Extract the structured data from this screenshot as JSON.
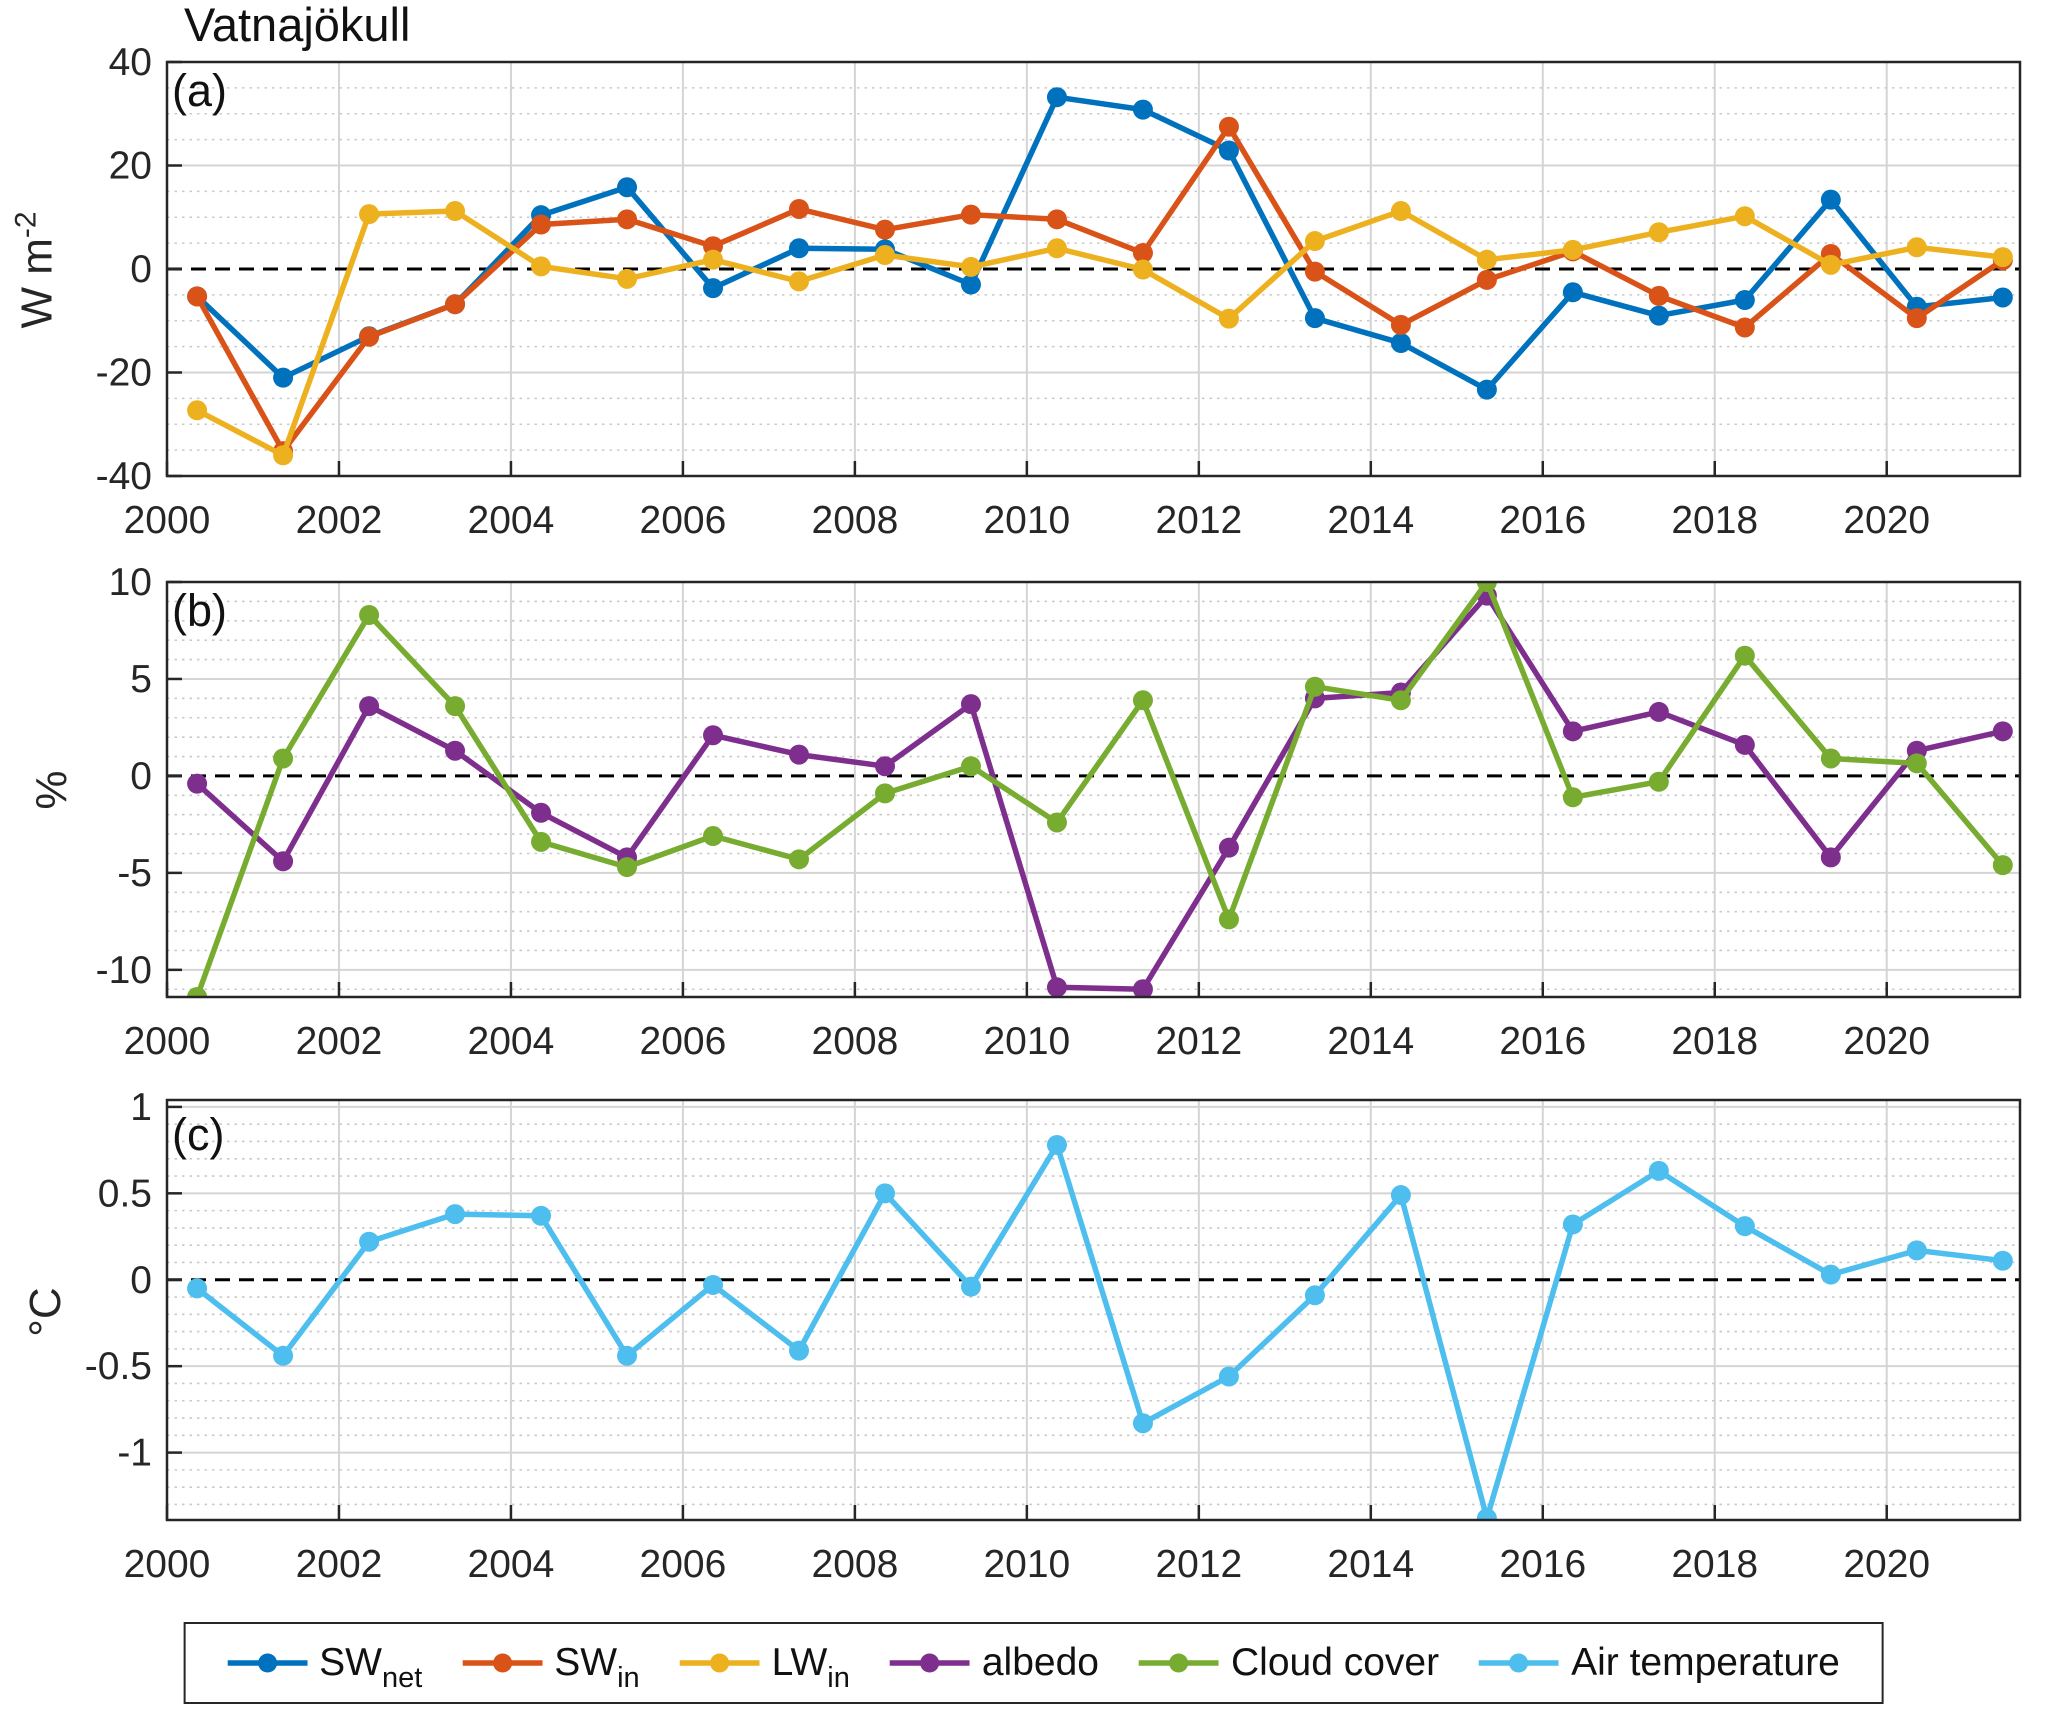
{
  "title": "Vatnajökull",
  "x_axis": {
    "years": [
      2000,
      2001,
      2002,
      2003,
      2004,
      2005,
      2006,
      2007,
      2008,
      2009,
      2010,
      2011,
      2012,
      2013,
      2014,
      2015,
      2016,
      2017,
      2018,
      2019,
      2020,
      2021
    ],
    "point_offset": 0.35,
    "xticks": [
      2000,
      2002,
      2004,
      2006,
      2008,
      2010,
      2012,
      2014,
      2016,
      2018,
      2020
    ],
    "xlim": [
      2000,
      2021.55
    ]
  },
  "chart_data": [
    {
      "type": "line",
      "panel_label": "(a)",
      "ylabel": "W m",
      "ylabel_sup": "-2",
      "ylim": [
        -40,
        40
      ],
      "yticks": [
        40,
        20,
        0,
        -20,
        -40
      ],
      "minor_step": 5,
      "zero_dashed_line": true,
      "grid": "on",
      "series": [
        {
          "name": "SW_net",
          "color": "#0072BD",
          "values": [
            -5.3,
            -21.0,
            -13.0,
            -6.8,
            10.4,
            15.8,
            -3.7,
            4.0,
            3.8,
            -3.0,
            33.2,
            30.8,
            22.9,
            -9.5,
            -14.3,
            -23.3,
            -4.5,
            -9.0,
            -6.0,
            13.4,
            -7.3,
            -5.5
          ]
        },
        {
          "name": "SW_in",
          "color": "#D95319",
          "values": [
            -5.3,
            -35.2,
            -13.1,
            -6.8,
            8.6,
            9.6,
            4.4,
            11.6,
            7.6,
            10.5,
            9.6,
            3.1,
            27.5,
            -0.5,
            -10.8,
            -2.1,
            3.4,
            -5.2,
            -11.3,
            2.9,
            -9.5,
            1.7
          ]
        },
        {
          "name": "LW_in",
          "color": "#EDB120",
          "values": [
            -27.3,
            -36.0,
            10.6,
            11.2,
            0.5,
            -1.9,
            1.8,
            -2.4,
            2.7,
            0.4,
            4.0,
            -0.1,
            -9.6,
            5.4,
            11.2,
            1.8,
            3.7,
            7.1,
            10.2,
            0.8,
            4.2,
            2.3
          ]
        }
      ]
    },
    {
      "type": "line",
      "panel_label": "(b)",
      "ylabel": "%",
      "ylabel_sup": "",
      "ylim": [
        -11.4,
        10
      ],
      "yticks": [
        10,
        5,
        0,
        -5,
        -10
      ],
      "minor_step": 1,
      "zero_dashed_line": true,
      "grid": "on",
      "series": [
        {
          "name": "albedo",
          "color": "#7E2F8E",
          "values": [
            -0.4,
            -4.4,
            3.6,
            1.3,
            -1.9,
            -4.2,
            2.1,
            1.1,
            0.5,
            3.7,
            -10.9,
            -11.0,
            -3.7,
            4.0,
            4.3,
            9.3,
            2.3,
            3.3,
            1.6,
            -4.2,
            1.3,
            2.3
          ]
        },
        {
          "name": "Cloud cover",
          "color": "#77AC30",
          "values": [
            -11.4,
            0.9,
            8.3,
            3.6,
            -3.4,
            -4.7,
            -3.1,
            -4.3,
            -0.9,
            0.5,
            -2.4,
            3.9,
            -7.4,
            4.6,
            3.9,
            10.0,
            -1.1,
            -0.3,
            6.2,
            0.9,
            0.65,
            -4.6
          ]
        }
      ]
    },
    {
      "type": "line",
      "panel_label": "(c)",
      "ylabel": "°C",
      "ylabel_sup": "",
      "ylim": [
        -1.39,
        1.04
      ],
      "yticks": [
        1,
        0.5,
        0,
        -0.5,
        -1
      ],
      "minor_step": 0.1,
      "zero_dashed_line": true,
      "grid": "on",
      "series": [
        {
          "name": "Air temperature",
          "color": "#4DBEEE",
          "values": [
            -0.05,
            -0.44,
            0.22,
            0.38,
            0.37,
            -0.44,
            -0.03,
            -0.41,
            0.5,
            -0.04,
            0.78,
            -0.83,
            -0.56,
            -0.09,
            0.49,
            -1.38,
            0.32,
            0.63,
            0.31,
            0.03,
            0.17,
            0.11
          ]
        }
      ]
    }
  ],
  "legend": {
    "items": [
      {
        "label": "SW",
        "sub": "net",
        "color": "#0072BD"
      },
      {
        "label": "SW",
        "sub": "in",
        "color": "#D95319"
      },
      {
        "label": "LW",
        "sub": "in",
        "color": "#EDB120"
      },
      {
        "label": "albedo",
        "sub": "",
        "color": "#7E2F8E"
      },
      {
        "label": "Cloud cover",
        "sub": "",
        "color": "#77AC30"
      },
      {
        "label": "Air temperature",
        "sub": "",
        "color": "#4DBEEE"
      }
    ]
  }
}
